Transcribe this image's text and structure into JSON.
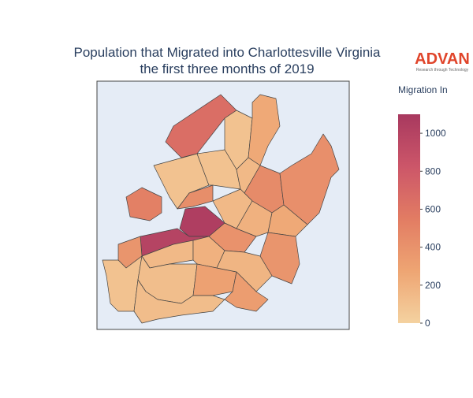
{
  "logo": {
    "name": "ADVAN",
    "tagline": "Research through Technology"
  },
  "chart_data": {
    "type": "choropleth",
    "title": [
      "Population that Migrated into Charlottesville Virginia",
      "the first three months of 2019"
    ],
    "colorbar_title": "Migration In",
    "zlim": [
      0,
      1100
    ],
    "zticks": [
      0,
      200,
      400,
      600,
      800,
      1000
    ],
    "colorscale": [
      "#f4d2a0",
      "#eea573",
      "#e27c63",
      "#cc5669",
      "#a8395f"
    ],
    "values": [
      650,
      100,
      250,
      100,
      520,
      100,
      150,
      450,
      420,
      430,
      1050,
      150,
      1000,
      400,
      200,
      250,
      380,
      380,
      100,
      150,
      200,
      120,
      300,
      180,
      330,
      130
    ]
  }
}
